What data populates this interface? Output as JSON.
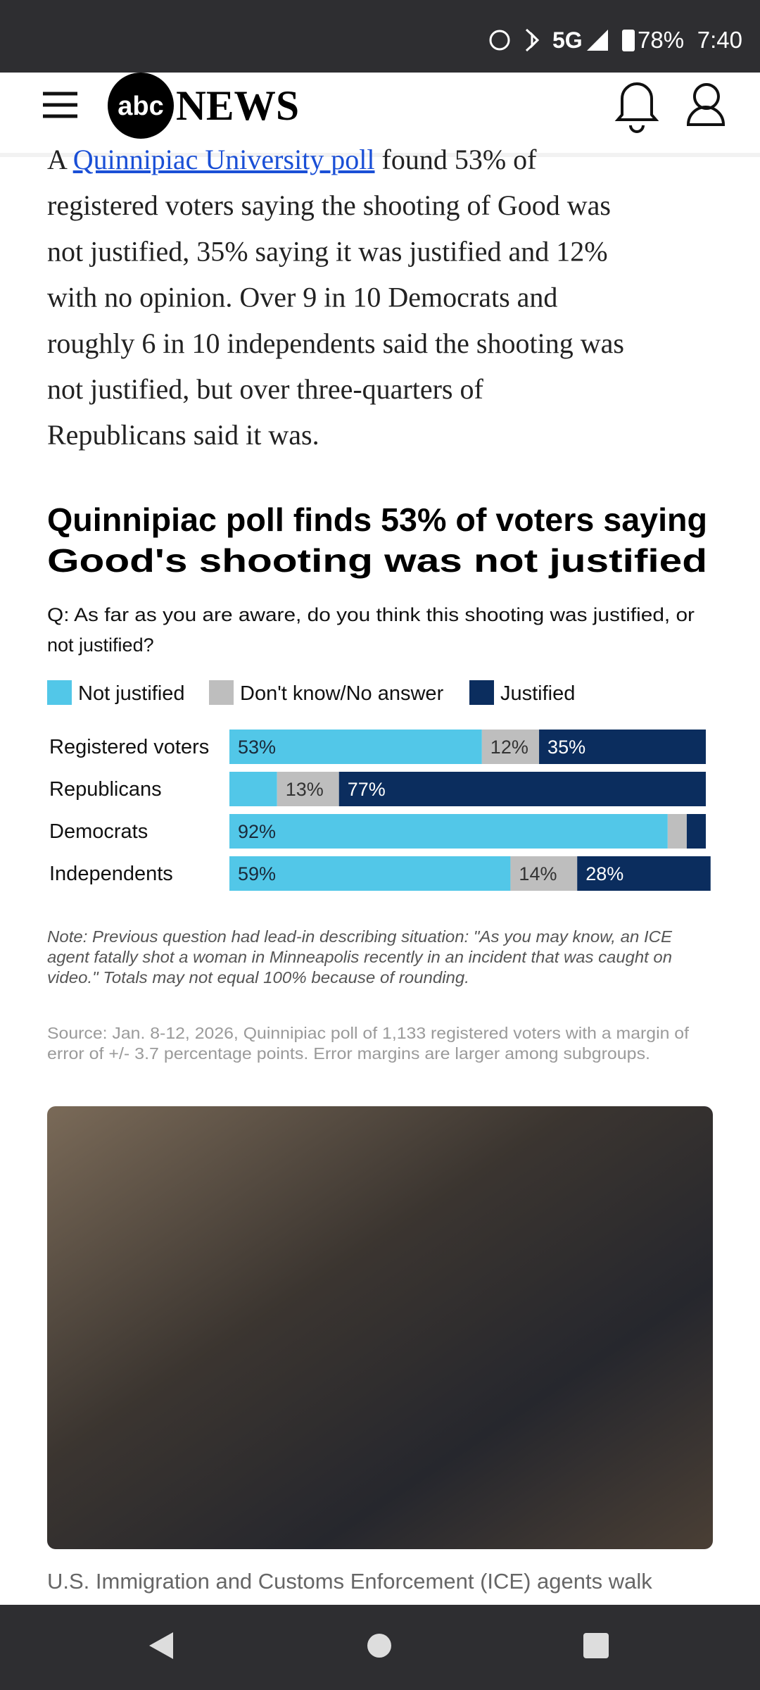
{
  "status_bar": {
    "network": "5G",
    "battery": "78%",
    "time": "7:40"
  },
  "header": {
    "logo_abc": "abc",
    "logo_news": "NEWS"
  },
  "article": {
    "lines": [
      {
        "before": "A ",
        "link": "Quinnipiac University poll",
        "after": " found 53% of"
      },
      "registered voters saying the shooting of Good was",
      "not justified, 35% saying it was justified and 12%",
      "with no opinion. Over 9 in 10 Democrats and",
      "roughly 6 in 10 independents said the shooting was",
      "not justified, but over three-quarters of",
      "Republicans said it was."
    ]
  },
  "chart_data": {
    "type": "bar",
    "stacked": true,
    "orientation": "horizontal",
    "title": [
      "Quinnipiac poll finds 53% of voters saying",
      "Good's shooting was not justified"
    ],
    "question": [
      "Q: As far as you are aware, do you think this shooting was justified, or",
      "not justified?"
    ],
    "categories": [
      "Registered voters",
      "Republicans",
      "Democrats",
      "Independents"
    ],
    "xlim": [
      0,
      100
    ],
    "series": [
      {
        "name": "Not justified",
        "color": "#52c7e8",
        "values": [
          53,
          10,
          92,
          59
        ],
        "value_labels": [
          "53%",
          null,
          "92%",
          "59%"
        ]
      },
      {
        "name": "Don't know/No answer",
        "color": "#bebebe",
        "values": [
          12,
          13,
          4,
          14
        ],
        "value_labels": [
          "12%",
          "13%",
          null,
          "14%"
        ]
      },
      {
        "name": "Justified",
        "color": "#0b2d5e",
        "values": [
          35,
          77,
          4,
          28
        ],
        "value_labels": [
          "35%",
          "77%",
          null,
          "28%"
        ]
      }
    ],
    "note": [
      "Note: Previous question had lead-in describing situation: \"As you may know, an ICE",
      "agent fatally shot a woman in Minneapolis recently in an incident that was caught on",
      "video.\" Totals may not equal 100% because of rounding."
    ],
    "source": [
      "Source: Jan. 8-12, 2026, Quinnipiac poll of 1,133 registered voters with a margin of",
      "error of +/- 3.7 percentage points. Error margins are larger among subgroups."
    ]
  },
  "image_caption": "U.S. Immigration and Customs Enforcement (ICE) agents walk"
}
